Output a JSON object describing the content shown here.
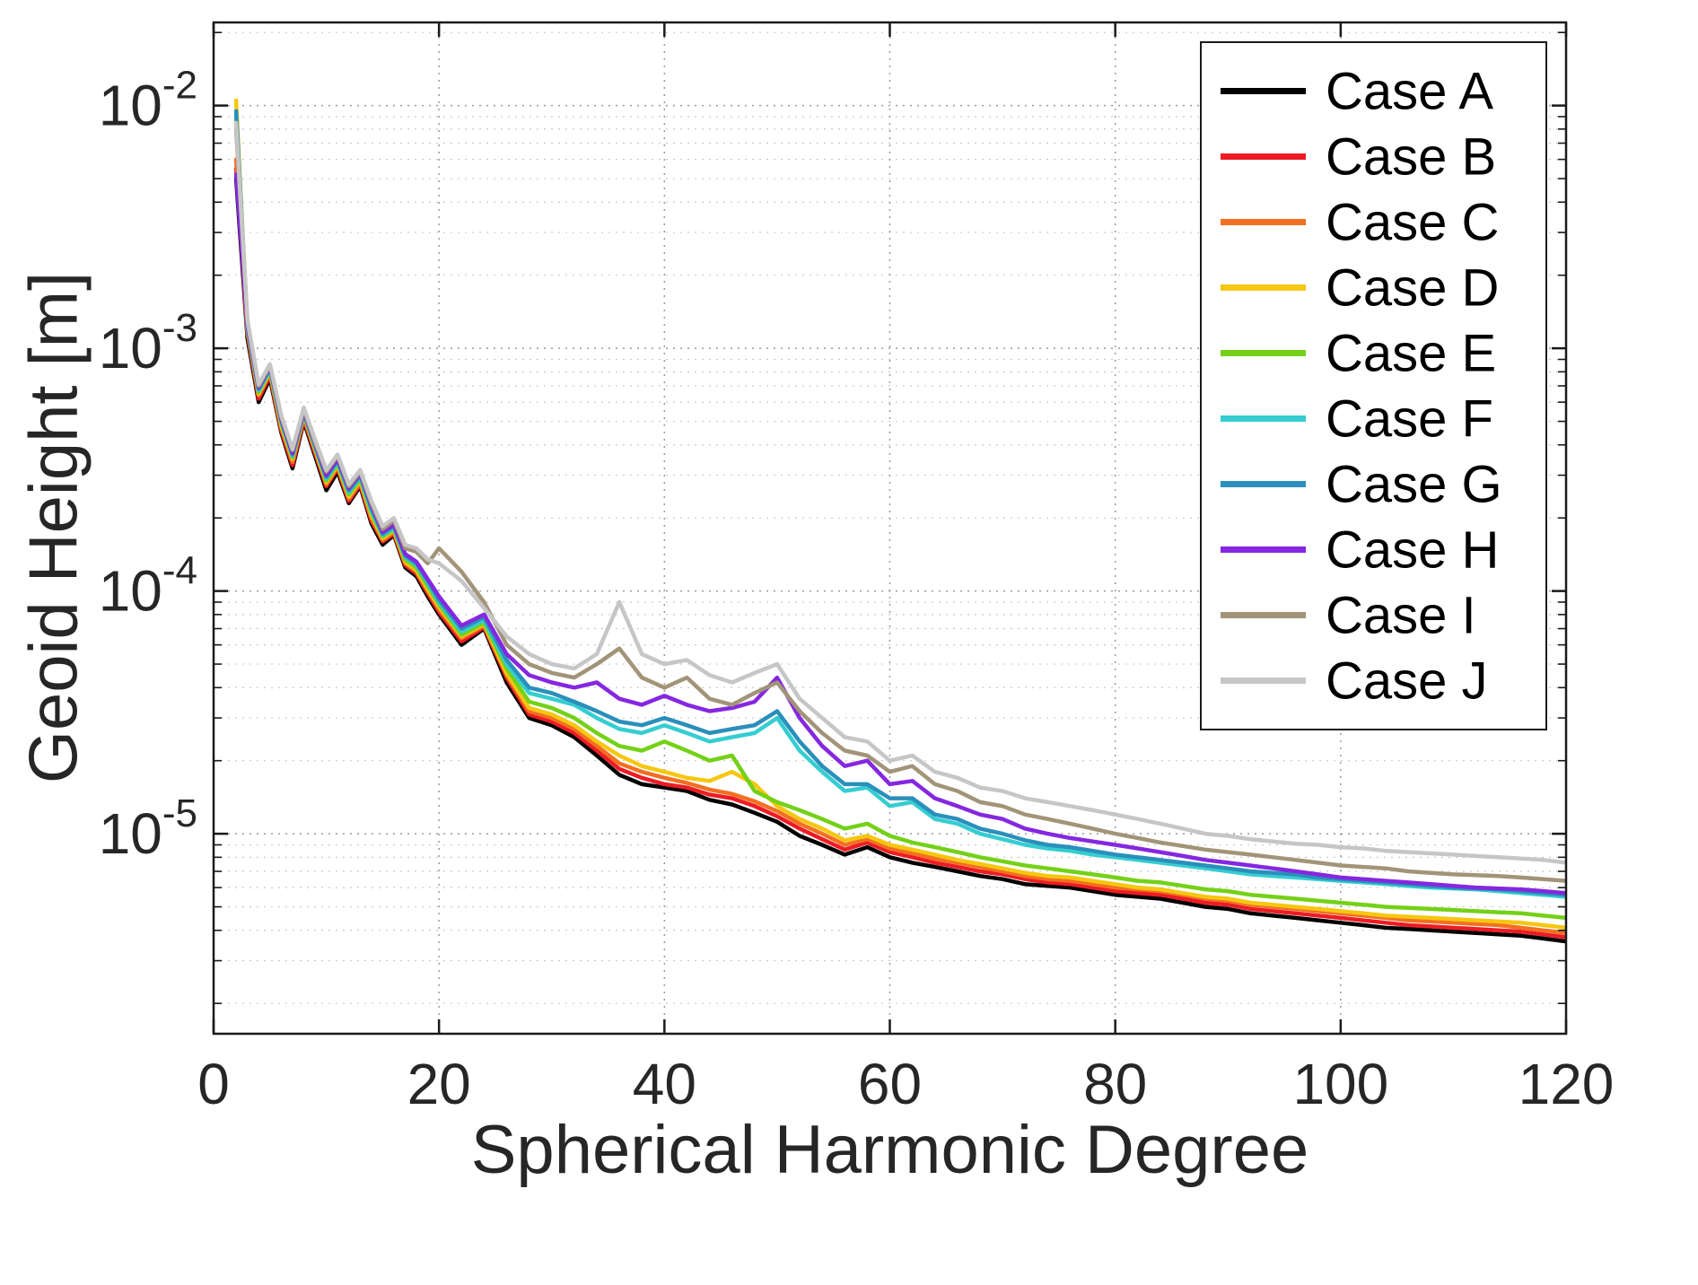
{
  "chart_data": {
    "type": "line",
    "title": "",
    "xlabel": "Spherical Harmonic Degree",
    "ylabel": "Geoid Height [m]",
    "x_scale": "linear",
    "y_scale": "log",
    "xlim": [
      0,
      120
    ],
    "ylim": [
      1.5e-06,
      0.022
    ],
    "x_ticks": [
      0,
      20,
      40,
      60,
      80,
      100,
      120
    ],
    "y_tick_exponents": [
      -2,
      -3,
      -4,
      -5
    ],
    "grid": "major and minor dotted",
    "legend_position": "northeast",
    "background": "#ffffff",
    "axis_color": "#1a1a1a",
    "text_color": "#262626",
    "x": [
      2,
      3,
      4,
      5,
      6,
      7,
      8,
      9,
      10,
      11,
      12,
      13,
      14,
      15,
      16,
      17,
      18,
      19,
      20,
      22,
      24,
      26,
      28,
      30,
      32,
      34,
      36,
      38,
      40,
      42,
      44,
      46,
      48,
      50,
      52,
      54,
      56,
      58,
      60,
      62,
      64,
      66,
      68,
      70,
      72,
      74,
      76,
      78,
      80,
      82,
      84,
      86,
      88,
      90,
      92,
      94,
      96,
      98,
      100,
      102,
      104,
      106,
      108,
      110,
      112,
      114,
      116,
      118,
      120
    ],
    "series": [
      {
        "name": "Case A",
        "color": "#000000",
        "values": [
          0.005,
          0.0011,
          0.0006,
          0.00075,
          0.00045,
          0.00032,
          0.0005,
          0.00036,
          0.00026,
          0.00031,
          0.00023,
          0.00027,
          0.00019,
          0.000155,
          0.00017,
          0.000125,
          0.000115,
          9.5e-05,
          8e-05,
          6e-05,
          7e-05,
          4.2e-05,
          3e-05,
          2.8e-05,
          2.5e-05,
          2.1e-05,
          1.75e-05,
          1.6e-05,
          1.55e-05,
          1.5e-05,
          1.38e-05,
          1.32e-05,
          1.22e-05,
          1.12e-05,
          9.8e-06,
          9e-06,
          8.2e-06,
          8.8e-06,
          8e-06,
          7.6e-06,
          7.3e-06,
          7e-06,
          6.7e-06,
          6.5e-06,
          6.2e-06,
          6.1e-06,
          6e-06,
          5.8e-06,
          5.6e-06,
          5.5e-06,
          5.4e-06,
          5.2e-06,
          5e-06,
          4.9e-06,
          4.7e-06,
          4.6e-06,
          4.5e-06,
          4.4e-06,
          4.3e-06,
          4.2e-06,
          4.1e-06,
          4.05e-06,
          4e-06,
          3.95e-06,
          3.9e-06,
          3.85e-06,
          3.8e-06,
          3.7e-06,
          3.6e-06
        ]
      },
      {
        "name": "Case B",
        "color": "#ed1c24",
        "values": [
          0.0055,
          0.00115,
          0.00062,
          0.00077,
          0.00046,
          0.00033,
          0.00051,
          0.00037,
          0.00027,
          0.00032,
          0.000235,
          0.000275,
          0.000195,
          0.00016,
          0.000172,
          0.000128,
          0.000118,
          9.8e-05,
          8.2e-05,
          6.2e-05,
          7.1e-05,
          4.4e-05,
          3.1e-05,
          2.9e-05,
          2.6e-05,
          2.2e-05,
          1.85e-05,
          1.7e-05,
          1.6e-05,
          1.55e-05,
          1.45e-05,
          1.4e-05,
          1.3e-05,
          1.18e-05,
          1.05e-05,
          9.5e-06,
          8.6e-06,
          9.2e-06,
          8.4e-06,
          8e-06,
          7.6e-06,
          7.3e-06,
          7e-06,
          6.8e-06,
          6.5e-06,
          6.3e-06,
          6.2e-06,
          6e-06,
          5.8e-06,
          5.7e-06,
          5.6e-06,
          5.4e-06,
          5.2e-06,
          5.1e-06,
          4.9e-06,
          4.8e-06,
          4.7e-06,
          4.6e-06,
          4.5e-06,
          4.4e-06,
          4.3e-06,
          4.2e-06,
          4.15e-06,
          4.1e-06,
          4.05e-06,
          4e-06,
          3.95e-06,
          3.85e-06,
          3.75e-06
        ]
      },
      {
        "name": "Case C",
        "color": "#f36f21",
        "values": [
          0.006,
          0.00118,
          0.00064,
          0.00079,
          0.00047,
          0.00034,
          0.00052,
          0.00038,
          0.000275,
          0.000325,
          0.00024,
          0.00028,
          0.0002,
          0.000162,
          0.000175,
          0.00013,
          0.00012,
          0.0001,
          8.4e-05,
          6.4e-05,
          7.2e-05,
          4.5e-05,
          3.2e-05,
          3e-05,
          2.7e-05,
          2.3e-05,
          1.95e-05,
          1.8e-05,
          1.7e-05,
          1.62e-05,
          1.52e-05,
          1.46e-05,
          1.36e-05,
          1.24e-05,
          1.1e-05,
          1e-05,
          9e-06,
          9.5e-06,
          8.7e-06,
          8.3e-06,
          7.9e-06,
          7.6e-06,
          7.3e-06,
          7e-06,
          6.7e-06,
          6.5e-06,
          6.4e-06,
          6.2e-06,
          6e-06,
          5.9e-06,
          5.8e-06,
          5.6e-06,
          5.4e-06,
          5.3e-06,
          5.1e-06,
          5e-06,
          4.9e-06,
          4.8e-06,
          4.7e-06,
          4.6e-06,
          4.5e-06,
          4.4e-06,
          4.35e-06,
          4.3e-06,
          4.25e-06,
          4.2e-06,
          4.1e-06,
          4e-06,
          3.9e-06
        ]
      },
      {
        "name": "Case D",
        "color": "#f5c710",
        "values": [
          0.0105,
          0.0012,
          0.00065,
          0.0008,
          0.00048,
          0.00035,
          0.00053,
          0.000385,
          0.00028,
          0.00033,
          0.000245,
          0.000285,
          0.000205,
          0.000165,
          0.000178,
          0.000132,
          0.000122,
          0.000102,
          8.6e-05,
          6.5e-05,
          7.3e-05,
          4.6e-05,
          3.3e-05,
          3.1e-05,
          2.8e-05,
          2.4e-05,
          2.1e-05,
          1.9e-05,
          1.8e-05,
          1.7e-05,
          1.65e-05,
          1.8e-05,
          1.6e-05,
          1.3e-05,
          1.15e-05,
          1.05e-05,
          9.4e-06,
          9.8e-06,
          9e-06,
          8.6e-06,
          8.2e-06,
          7.8e-06,
          7.5e-06,
          7.2e-06,
          6.9e-06,
          6.7e-06,
          6.6e-06,
          6.4e-06,
          6.2e-06,
          6e-06,
          5.9e-06,
          5.7e-06,
          5.5e-06,
          5.4e-06,
          5.2e-06,
          5.1e-06,
          5e-06,
          4.9e-06,
          4.8e-06,
          4.7e-06,
          4.6e-06,
          4.55e-06,
          4.5e-06,
          4.45e-06,
          4.4e-06,
          4.35e-06,
          4.3e-06,
          4.2e-06,
          4.1e-06
        ]
      },
      {
        "name": "Case E",
        "color": "#74d117",
        "values": [
          0.009,
          0.0012,
          0.00066,
          0.00081,
          0.00049,
          0.000355,
          0.000535,
          0.00039,
          0.000285,
          0.000335,
          0.00025,
          0.00029,
          0.00021,
          0.000168,
          0.00018,
          0.000135,
          0.000125,
          0.000105,
          8.8e-05,
          6.6e-05,
          7.4e-05,
          4.8e-05,
          3.5e-05,
          3.3e-05,
          3e-05,
          2.6e-05,
          2.3e-05,
          2.2e-05,
          2.4e-05,
          2.2e-05,
          2e-05,
          2.1e-05,
          1.5e-05,
          1.35e-05,
          1.25e-05,
          1.15e-05,
          1.05e-05,
          1.1e-05,
          9.8e-06,
          9.2e-06,
          8.8e-06,
          8.4e-06,
          8e-06,
          7.7e-06,
          7.4e-06,
          7.2e-06,
          7e-06,
          6.8e-06,
          6.6e-06,
          6.4e-06,
          6.3e-06,
          6.1e-06,
          5.9e-06,
          5.8e-06,
          5.6e-06,
          5.5e-06,
          5.4e-06,
          5.3e-06,
          5.2e-06,
          5.1e-06,
          5e-06,
          4.95e-06,
          4.9e-06,
          4.85e-06,
          4.8e-06,
          4.75e-06,
          4.7e-06,
          4.6e-06,
          4.5e-06
        ]
      },
      {
        "name": "Case F",
        "color": "#35cdd1",
        "values": [
          0.0093,
          0.00122,
          0.00067,
          0.00082,
          0.0005,
          0.00036,
          0.00054,
          0.000395,
          0.00029,
          0.00034,
          0.000255,
          0.000295,
          0.000215,
          0.00017,
          0.000182,
          0.000138,
          0.000128,
          0.000108,
          9e-05,
          6.8e-05,
          7.6e-05,
          5e-05,
          3.8e-05,
          3.6e-05,
          3.4e-05,
          3e-05,
          2.7e-05,
          2.6e-05,
          2.8e-05,
          2.6e-05,
          2.4e-05,
          2.5e-05,
          2.6e-05,
          3e-05,
          2.2e-05,
          1.8e-05,
          1.5e-05,
          1.55e-05,
          1.3e-05,
          1.35e-05,
          1.15e-05,
          1.1e-05,
          1e-05,
          9.5e-06,
          9e-06,
          8.7e-06,
          8.5e-06,
          8.2e-06,
          8e-06,
          7.8e-06,
          7.6e-06,
          7.4e-06,
          7.2e-06,
          7e-06,
          6.8e-06,
          6.7e-06,
          6.6e-06,
          6.5e-06,
          6.4e-06,
          6.3e-06,
          6.2e-06,
          6.1e-06,
          6e-06,
          5.95e-06,
          5.9e-06,
          5.8e-06,
          5.7e-06,
          5.6e-06,
          5.5e-06
        ]
      },
      {
        "name": "Case G",
        "color": "#2a8fbb",
        "values": [
          0.0095,
          0.00123,
          0.00068,
          0.00083,
          0.000505,
          0.000365,
          0.000545,
          0.0004,
          0.000295,
          0.000345,
          0.00026,
          0.0003,
          0.00022,
          0.000172,
          0.000185,
          0.00014,
          0.00013,
          0.00011,
          9.2e-05,
          7e-05,
          7.8e-05,
          5.2e-05,
          4e-05,
          3.8e-05,
          3.5e-05,
          3.2e-05,
          2.9e-05,
          2.8e-05,
          3e-05,
          2.8e-05,
          2.6e-05,
          2.7e-05,
          2.8e-05,
          3.2e-05,
          2.4e-05,
          1.9e-05,
          1.6e-05,
          1.6e-05,
          1.4e-05,
          1.4e-05,
          1.2e-05,
          1.15e-05,
          1.05e-05,
          1e-05,
          9.4e-06,
          9e-06,
          8.8e-06,
          8.5e-06,
          8.2e-06,
          8e-06,
          7.8e-06,
          7.6e-06,
          7.4e-06,
          7.2e-06,
          7e-06,
          6.9e-06,
          6.8e-06,
          6.6e-06,
          6.5e-06,
          6.4e-06,
          6.3e-06,
          6.2e-06,
          6.1e-06,
          6e-06,
          5.95e-06,
          5.9e-06,
          5.8e-06,
          5.7e-06,
          5.6e-06
        ]
      },
      {
        "name": "Case H",
        "color": "#8527e0",
        "values": [
          0.0052,
          0.00125,
          0.00069,
          0.00084,
          0.00051,
          0.00037,
          0.00055,
          0.000405,
          0.0003,
          0.00035,
          0.000265,
          0.000305,
          0.000225,
          0.000175,
          0.000188,
          0.000142,
          0.000132,
          0.000112,
          9.5e-05,
          7.2e-05,
          8e-05,
          5.5e-05,
          4.5e-05,
          4.2e-05,
          4e-05,
          4.2e-05,
          3.6e-05,
          3.4e-05,
          3.7e-05,
          3.4e-05,
          3.2e-05,
          3.3e-05,
          3.5e-05,
          4.4e-05,
          3e-05,
          2.3e-05,
          1.9e-05,
          2e-05,
          1.6e-05,
          1.65e-05,
          1.4e-05,
          1.3e-05,
          1.2e-05,
          1.15e-05,
          1.05e-05,
          1e-05,
          9.6e-06,
          9.3e-06,
          9e-06,
          8.7e-06,
          8.4e-06,
          8.1e-06,
          7.8e-06,
          7.6e-06,
          7.4e-06,
          7.2e-06,
          7e-06,
          6.8e-06,
          6.6e-06,
          6.5e-06,
          6.4e-06,
          6.3e-06,
          6.2e-06,
          6.1e-06,
          6e-06,
          5.95e-06,
          5.9e-06,
          5.8e-06,
          5.7e-06
        ]
      },
      {
        "name": "Case I",
        "color": "#a29478",
        "values": [
          0.008,
          0.0013,
          0.0007,
          0.00085,
          0.00052,
          0.00038,
          0.00056,
          0.00041,
          0.00031,
          0.00036,
          0.00027,
          0.00031,
          0.00023,
          0.00018,
          0.000195,
          0.00015,
          0.000145,
          0.00013,
          0.00015,
          0.00012,
          9e-05,
          6e-05,
          5e-05,
          4.6e-05,
          4.4e-05,
          5e-05,
          5.8e-05,
          4.4e-05,
          4e-05,
          4.4e-05,
          3.6e-05,
          3.4e-05,
          3.8e-05,
          4.2e-05,
          3.2e-05,
          2.6e-05,
          2.2e-05,
          2.1e-05,
          1.8e-05,
          1.9e-05,
          1.6e-05,
          1.5e-05,
          1.35e-05,
          1.3e-05,
          1.2e-05,
          1.15e-05,
          1.1e-05,
          1.05e-05,
          1e-05,
          9.6e-06,
          9.2e-06,
          8.9e-06,
          8.6e-06,
          8.4e-06,
          8.2e-06,
          8e-06,
          7.8e-06,
          7.6e-06,
          7.4e-06,
          7.3e-06,
          7.2e-06,
          7e-06,
          6.9e-06,
          6.8e-06,
          6.75e-06,
          6.7e-06,
          6.6e-06,
          6.5e-06,
          6.4e-06
        ]
      },
      {
        "name": "Case J",
        "color": "#c6c6c6",
        "values": [
          0.0085,
          0.0013,
          0.00071,
          0.00086,
          0.00053,
          0.000385,
          0.00057,
          0.00042,
          0.000315,
          0.000365,
          0.000275,
          0.000315,
          0.000235,
          0.000185,
          0.0002,
          0.000155,
          0.00015,
          0.000135,
          0.00013,
          0.00011,
          8.5e-05,
          6.5e-05,
          5.5e-05,
          5e-05,
          4.8e-05,
          5.5e-05,
          9e-05,
          5.5e-05,
          5e-05,
          5.2e-05,
          4.5e-05,
          4.2e-05,
          4.6e-05,
          5e-05,
          3.6e-05,
          3e-05,
          2.5e-05,
          2.4e-05,
          2e-05,
          2.1e-05,
          1.8e-05,
          1.7e-05,
          1.55e-05,
          1.5e-05,
          1.4e-05,
          1.35e-05,
          1.3e-05,
          1.25e-05,
          1.2e-05,
          1.15e-05,
          1.1e-05,
          1.05e-05,
          1e-05,
          9.8e-06,
          9.5e-06,
          9.3e-06,
          9.1e-06,
          9e-06,
          8.8e-06,
          8.7e-06,
          8.5e-06,
          8.4e-06,
          8.3e-06,
          8.2e-06,
          8.1e-06,
          8e-06,
          7.9e-06,
          7.8e-06,
          7.6e-06
        ]
      }
    ]
  }
}
